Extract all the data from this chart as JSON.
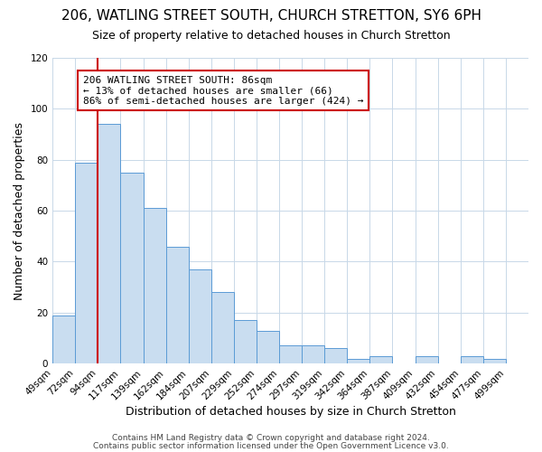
{
  "title": "206, WATLING STREET SOUTH, CHURCH STRETTON, SY6 6PH",
  "subtitle": "Size of property relative to detached houses in Church Stretton",
  "xlabel": "Distribution of detached houses by size in Church Stretton",
  "ylabel": "Number of detached properties",
  "bar_labels": [
    "49sqm",
    "72sqm",
    "94sqm",
    "117sqm",
    "139sqm",
    "162sqm",
    "184sqm",
    "207sqm",
    "229sqm",
    "252sqm",
    "274sqm",
    "297sqm",
    "319sqm",
    "342sqm",
    "364sqm",
    "387sqm",
    "409sqm",
    "432sqm",
    "454sqm",
    "477sqm",
    "499sqm"
  ],
  "bar_heights": [
    19,
    79,
    94,
    75,
    61,
    46,
    37,
    28,
    17,
    13,
    7,
    7,
    6,
    2,
    3,
    0,
    3,
    0,
    3,
    2,
    0
  ],
  "bar_color": "#c9ddf0",
  "bar_edge_color": "#5b9bd5",
  "vline_x": 1.5,
  "vline_color": "#cc0000",
  "annotation_text": "206 WATLING STREET SOUTH: 86sqm\n← 13% of detached houses are smaller (66)\n86% of semi-detached houses are larger (424) →",
  "annotation_box_edgecolor": "#cc0000",
  "annotation_box_facecolor": "#ffffff",
  "ylim": [
    0,
    120
  ],
  "yticks": [
    0,
    20,
    40,
    60,
    80,
    100,
    120
  ],
  "footer1": "Contains HM Land Registry data © Crown copyright and database right 2024.",
  "footer2": "Contains public sector information licensed under the Open Government Licence v3.0.",
  "background_color": "#ffffff",
  "grid_color": "#c8d8e8",
  "title_fontsize": 11,
  "subtitle_fontsize": 9,
  "xlabel_fontsize": 9,
  "ylabel_fontsize": 9,
  "tick_fontsize": 7.5,
  "annotation_fontsize": 8,
  "footer_fontsize": 6.5
}
